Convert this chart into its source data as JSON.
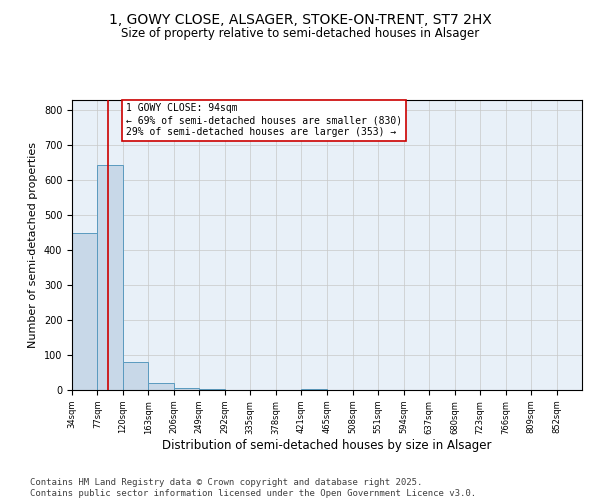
{
  "title1": "1, GOWY CLOSE, ALSAGER, STOKE-ON-TRENT, ST7 2HX",
  "title2": "Size of property relative to semi-detached houses in Alsager",
  "xlabel": "Distribution of semi-detached houses by size in Alsager",
  "ylabel": "Number of semi-detached properties",
  "property_size": 94,
  "property_label": "1 GOWY CLOSE: 94sqm",
  "annotation_line1": "← 69% of semi-detached houses are smaller (830)",
  "annotation_line2": "29% of semi-detached houses are larger (353) →",
  "bin_edges": [
    34,
    77,
    120,
    163,
    206,
    249,
    292,
    335,
    378,
    421,
    465,
    508,
    551,
    594,
    637,
    680,
    723,
    766,
    809,
    852,
    895
  ],
  "bar_heights": [
    450,
    645,
    80,
    20,
    5,
    2,
    1,
    0,
    0,
    2,
    0,
    0,
    0,
    0,
    0,
    0,
    0,
    0,
    0,
    0
  ],
  "bar_color": "#c8d8e8",
  "bar_edgecolor": "#5a9abf",
  "redline_color": "#cc0000",
  "annotation_box_edgecolor": "#cc0000",
  "grid_color": "#c8c8c8",
  "bg_color": "#e8f0f8",
  "footer_text": "Contains HM Land Registry data © Crown copyright and database right 2025.\nContains public sector information licensed under the Open Government Licence v3.0.",
  "ylim": [
    0,
    830
  ],
  "title1_fontsize": 10,
  "title2_fontsize": 8.5,
  "xlabel_fontsize": 8.5,
  "ylabel_fontsize": 8,
  "tick_fontsize": 6,
  "annot_fontsize": 7,
  "footer_fontsize": 6.5
}
